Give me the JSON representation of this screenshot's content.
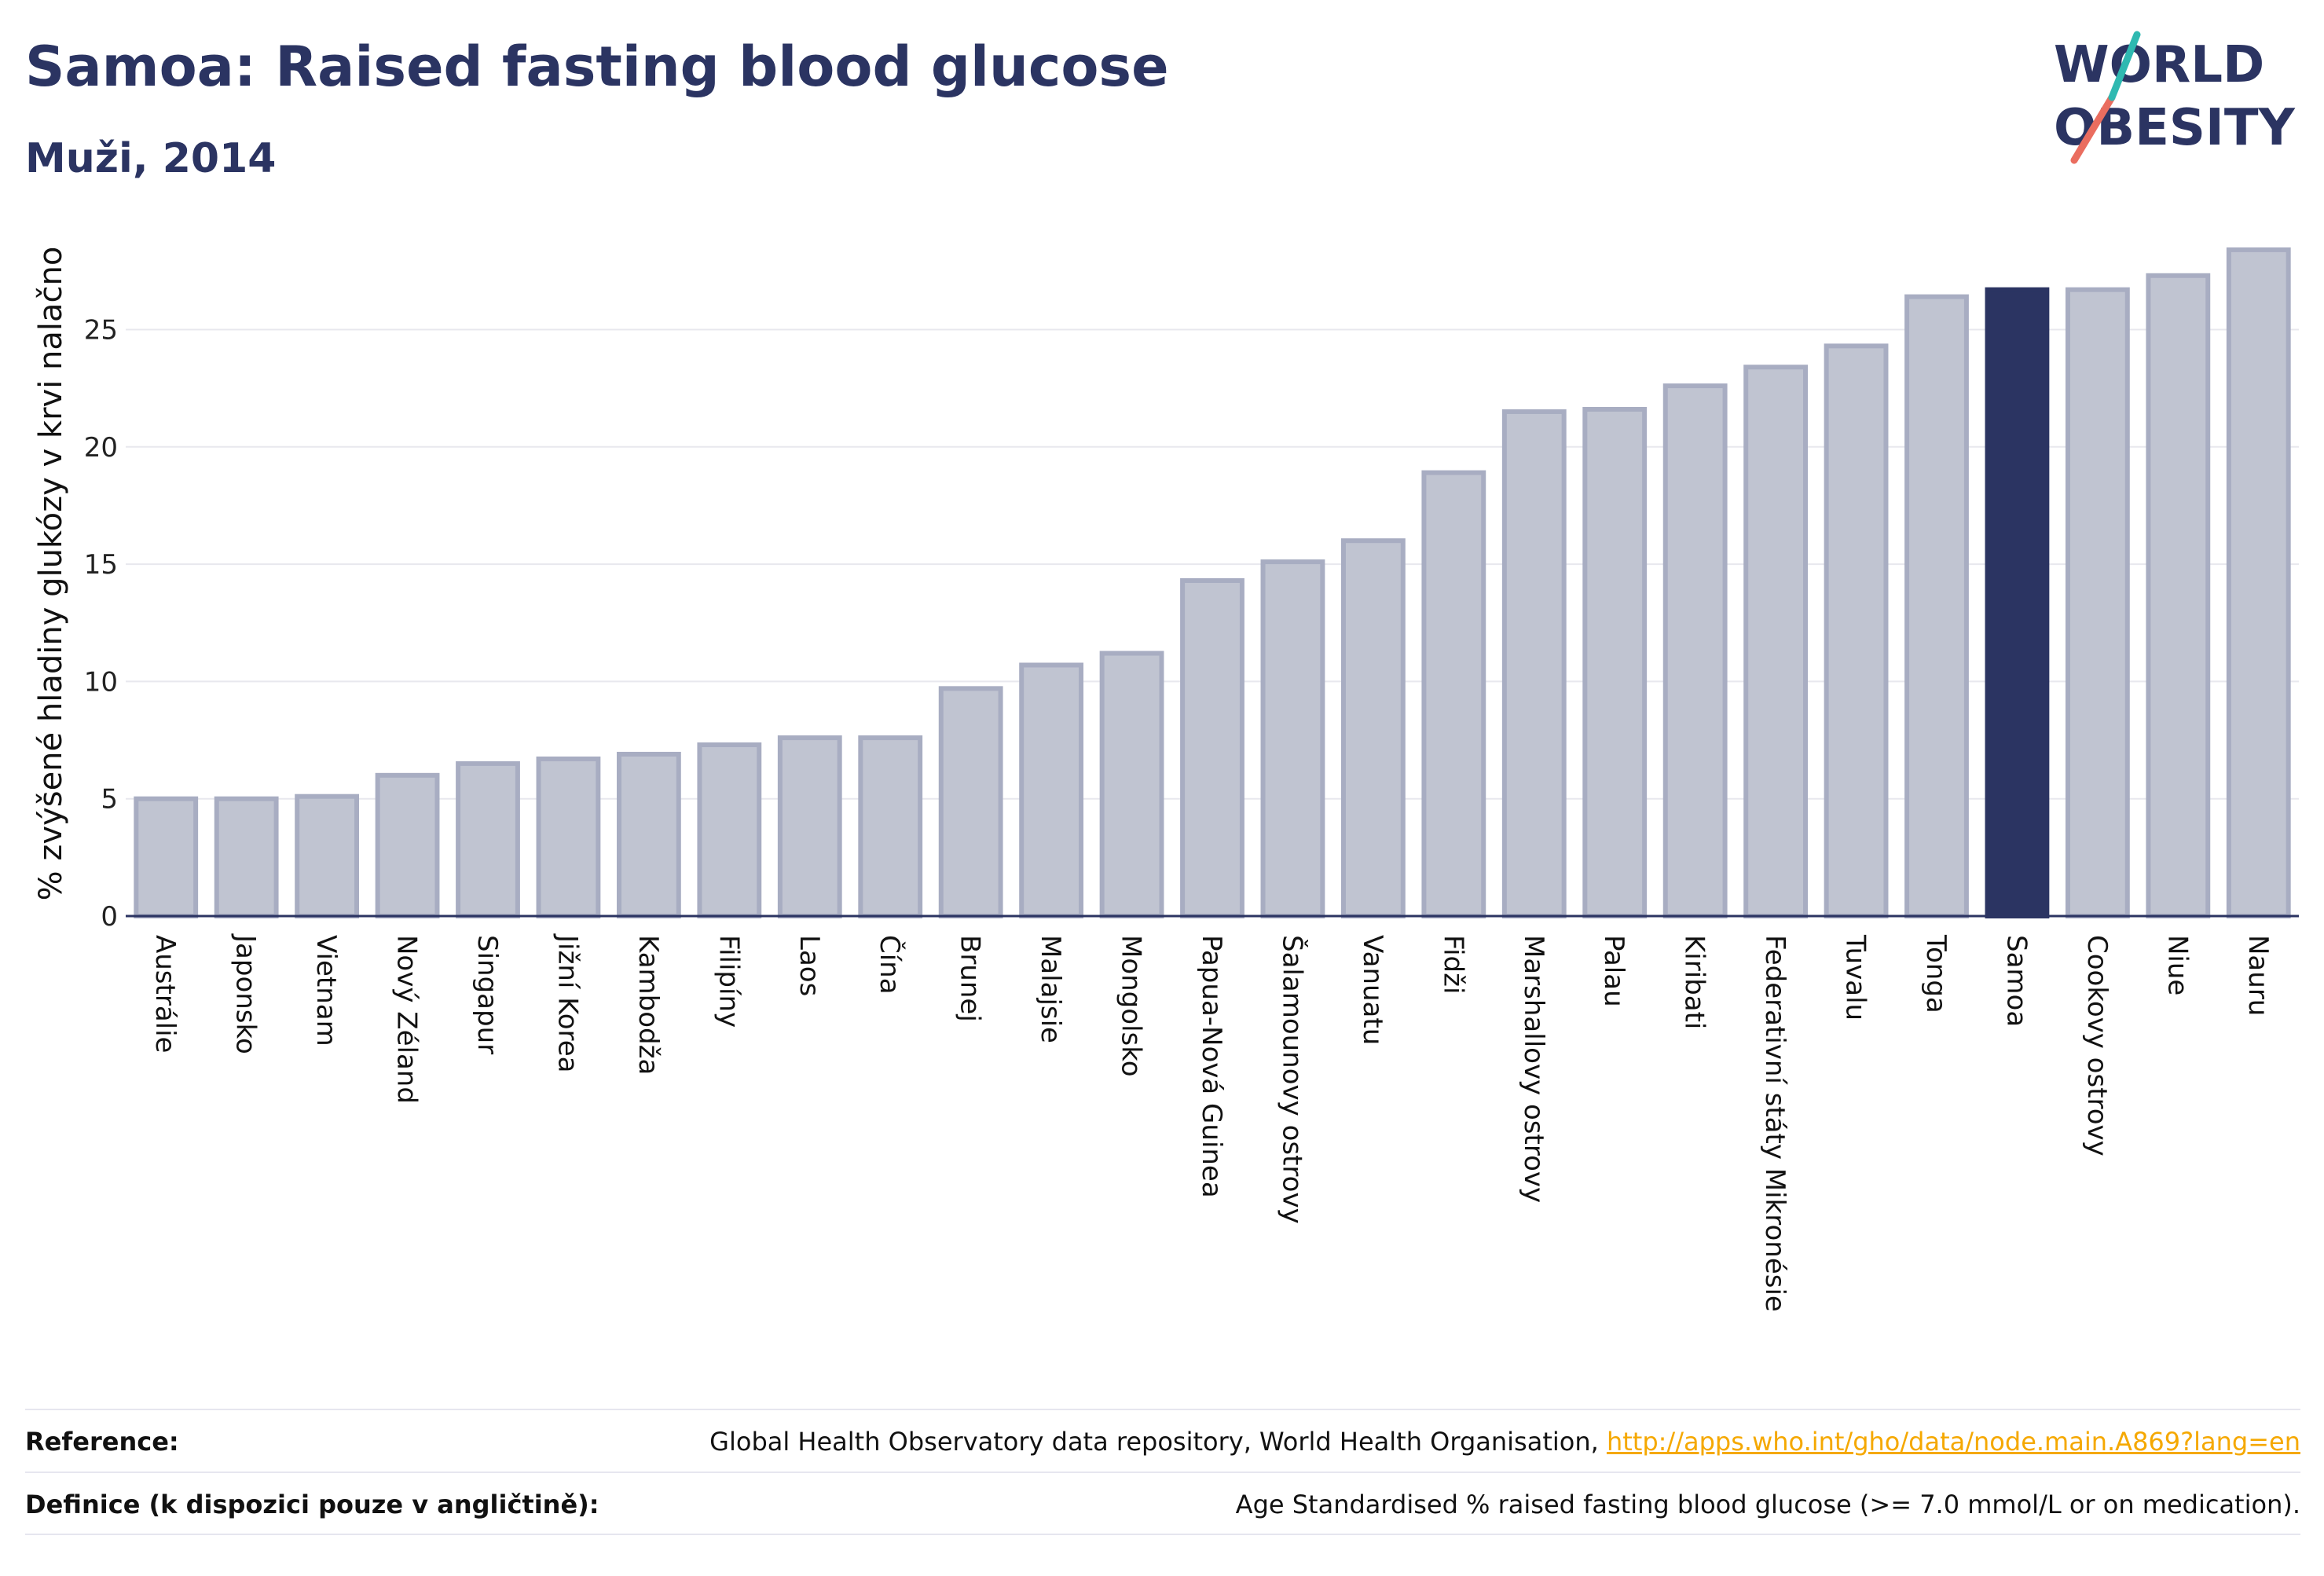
{
  "header": {
    "title": "Samoa: Raised fasting blood glucose",
    "subtitle": "Muži, 2014"
  },
  "logo": {
    "line1": "WORLD",
    "line2": "OBESITY"
  },
  "chart_data": {
    "type": "bar",
    "ylabel": "% zvýšené hladiny glukózy v krvi nalačno",
    "xlabel": "",
    "ylim": [
      0,
      29
    ],
    "yticks": [
      0,
      5,
      10,
      15,
      20,
      25
    ],
    "grid": true,
    "legend": "none",
    "highlight": "Samoa",
    "colors": {
      "bar": "#c0c4d1",
      "bar_edge": "#a8adc2",
      "highlight": "#2b3462"
    },
    "categories": [
      "Austrálie",
      "Japonsko",
      "Vietnam",
      "Nový Zéland",
      "Singapur",
      "Jižní Korea",
      "Kambodža",
      "Filipíny",
      "Laos",
      "Čína",
      "Brunej",
      "Malajsie",
      "Mongolsko",
      "Papua-Nová Guinea",
      "Šalamounovy ostrovy",
      "Vanuatu",
      "Fidži",
      "Marshallovy ostrovy",
      "Palau",
      "Kiribati",
      "Federativní státy Mikronésie",
      "Tuvalu",
      "Tonga",
      "Samoa",
      "Cookovy ostrovy",
      "Niue",
      "Nauru"
    ],
    "values": [
      5.0,
      5.0,
      5.1,
      6.0,
      6.5,
      6.7,
      6.9,
      7.3,
      7.6,
      7.6,
      9.7,
      10.7,
      11.2,
      14.3,
      15.1,
      16.0,
      18.9,
      21.5,
      21.6,
      22.6,
      23.4,
      24.3,
      26.4,
      26.7,
      26.7,
      27.3,
      28.4
    ]
  },
  "footer": {
    "reference_label": "Reference:",
    "reference_text": "Global Health Observatory data repository, World Health Organisation, ",
    "reference_link": "http://apps.who.int/gho/data/node.main.A869?lang=en",
    "definition_label": "Definice (k dispozici pouze v angličtině):",
    "definition_text": "Age Standardised % raised fasting blood glucose (>= 7.0 mmol/L or on medication)."
  }
}
